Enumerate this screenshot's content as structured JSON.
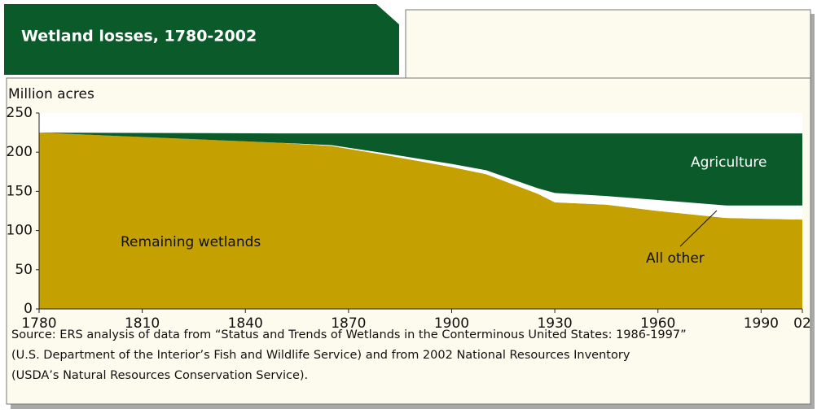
{
  "chart_data": {
    "type": "stacked-area",
    "title": "Wetland losses, 1780-2002",
    "y_label": "Million acres",
    "x": [
      1780,
      1850,
      1865,
      1880,
      1900,
      1910,
      1925,
      1930,
      1945,
      1960,
      1980,
      2002
    ],
    "series": [
      {
        "name": "Remaining wetlands",
        "color": "#c4a000",
        "values": [
          225,
          212,
          208,
          197,
          181,
          172,
          147,
          136,
          133,
          125,
          116,
          114
        ]
      },
      {
        "name": "All other",
        "color": "#ffffff",
        "values": [
          0,
          0,
          1,
          2,
          4,
          5,
          7,
          12,
          11,
          14,
          16,
          18
        ]
      },
      {
        "name": "Agriculture",
        "color": "#0b5a2a",
        "values": [
          0,
          12,
          15,
          25,
          39,
          47,
          70,
          76,
          80,
          85,
          92,
          92
        ]
      }
    ],
    "xlim": [
      1780,
      2002
    ],
    "xticks": [
      1780,
      1810,
      1840,
      1870,
      1900,
      1930,
      1960,
      1990,
      {
        "value": 2002,
        "label": "02"
      }
    ],
    "ylim": [
      0,
      250
    ],
    "yticks": [
      0,
      50,
      100,
      150,
      200,
      250
    ],
    "source": [
      "Source:  ERS analysis of data from “Status and Trends of Wetlands in the Conterminous United States: 1986-1997”",
      "(U.S. Department of the Interior’s Fish and Wildlife Service) and from 2002 National Resources Inventory",
      "(USDA’s Natural Resources Conservation Service)."
    ]
  }
}
